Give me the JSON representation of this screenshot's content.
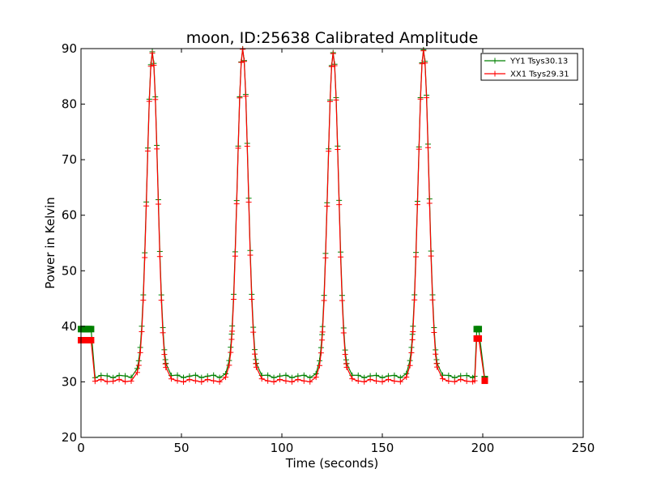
{
  "chart_data": {
    "type": "line",
    "title": "moon, ID:25638 Calibrated Amplitude",
    "xlabel": "Time (seconds)",
    "ylabel": "Power in Kelvin",
    "xlim": [
      0,
      250
    ],
    "ylim": [
      20,
      90
    ],
    "xticks": [
      "0",
      "50",
      "100",
      "150",
      "200",
      "250"
    ],
    "yticks": [
      "20",
      "30",
      "40",
      "50",
      "60",
      "70",
      "80",
      "90"
    ],
    "grid": false,
    "legend": "top-right",
    "baseline_times": [
      7,
      10,
      13,
      16,
      19,
      22,
      25,
      28,
      42,
      45,
      48,
      51,
      54,
      57,
      60,
      63,
      66,
      69,
      72,
      75,
      87,
      90,
      93,
      96,
      99,
      102,
      105,
      108,
      111,
      114,
      117,
      120,
      132,
      135,
      138,
      141,
      144,
      147,
      150,
      153,
      156,
      159,
      162,
      165,
      177,
      180,
      183,
      186,
      189,
      192,
      195
    ],
    "series": [
      {
        "name": "YY1 Tsys30.13",
        "color": "#008000",
        "baseline": 31.0,
        "start_level": 39.5,
        "start_span": [
          0,
          5
        ],
        "spike_level": 39.5,
        "spike_time": 197,
        "end_level": 30.5,
        "end_time": 201,
        "peaks": [
          {
            "t": 35.5,
            "peak": 89.5,
            "width": 2.7
          },
          {
            "t": 80.5,
            "peak": 90.0,
            "width": 2.7
          },
          {
            "t": 125.5,
            "peak": 89.3,
            "width": 2.7
          },
          {
            "t": 170.5,
            "peak": 89.8,
            "width": 2.7
          }
        ]
      },
      {
        "name": "XX1 Tsys29.31",
        "color": "#ff0000",
        "baseline": 30.2,
        "start_level": 37.5,
        "start_span": [
          0,
          5
        ],
        "spike_level": 37.8,
        "spike_time": 197,
        "end_level": 30.2,
        "end_time": 201,
        "peaks": [
          {
            "t": 35.5,
            "peak": 89.0,
            "width": 2.7
          },
          {
            "t": 80.5,
            "peak": 89.7,
            "width": 2.7
          },
          {
            "t": 125.5,
            "peak": 88.9,
            "width": 2.7
          },
          {
            "t": 170.5,
            "peak": 89.4,
            "width": 2.7
          }
        ]
      }
    ]
  }
}
